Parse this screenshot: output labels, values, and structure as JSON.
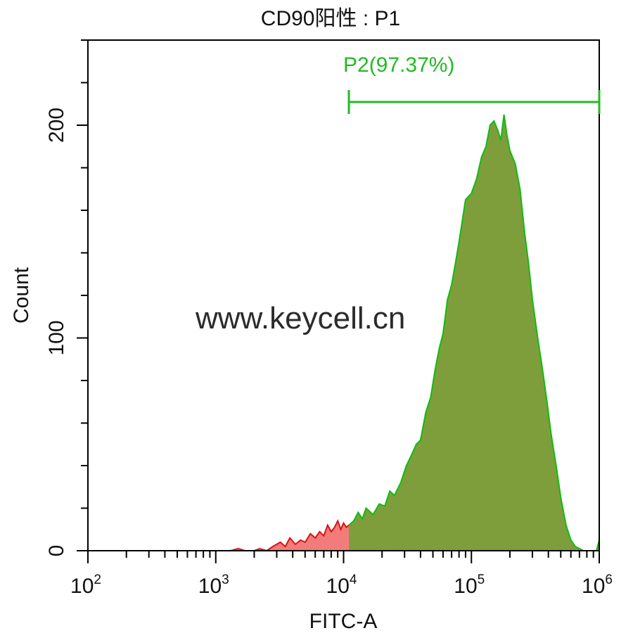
{
  "chart_data": {
    "type": "area",
    "title": "CD90阳性 : P1",
    "xlabel": "FITC-A",
    "ylabel": "Count",
    "x_scale": "log",
    "xlim": [
      100,
      1000000
    ],
    "ylim": [
      0,
      240
    ],
    "x_ticks": [
      {
        "base": "10",
        "exp": "2",
        "value": 100
      },
      {
        "base": "10",
        "exp": "3",
        "value": 1000
      },
      {
        "base": "10",
        "exp": "4",
        "value": 10000
      },
      {
        "base": "10",
        "exp": "5",
        "value": 100000
      },
      {
        "base": "10",
        "exp": "6",
        "value": 1000000
      }
    ],
    "y_ticks": [
      {
        "label": "0",
        "value": 0
      },
      {
        "label": "100",
        "value": 100
      },
      {
        "label": "200",
        "value": 200
      }
    ],
    "gate": {
      "name": "P2",
      "label": "P2(97.37%)",
      "percent": 97.37,
      "x_start": 11000,
      "x_end": 1000000,
      "color": "#22bb22"
    },
    "annotation": "www.keycell.cn",
    "series": [
      {
        "color_fill": "#f27c7c",
        "color_line": "#e01010",
        "x": [
          1300,
          1500,
          1700,
          2000,
          2200,
          2500,
          2800,
          3200,
          3500,
          3800,
          4200,
          4600,
          5000,
          5500,
          6000,
          6500,
          7000,
          7500,
          8000,
          8500,
          9000,
          9500,
          10000,
          10500,
          11000
        ],
        "y": [
          0,
          1,
          0,
          0,
          1,
          0,
          2,
          4,
          2,
          6,
          3,
          5,
          4,
          8,
          6,
          9,
          7,
          12,
          9,
          11,
          14,
          10,
          13,
          11,
          12
        ]
      },
      {
        "color_fill": "#7e9e3c",
        "color_line": "#11bb11",
        "x": [
          11000,
          12000,
          13000,
          14000,
          15000,
          17000,
          19000,
          21000,
          23000,
          25000,
          28000,
          31000,
          34000,
          37000,
          40000,
          44000,
          48000,
          52000,
          56000,
          60000,
          65000,
          70000,
          75000,
          80000,
          90000,
          100000,
          110000,
          120000,
          130000,
          140000,
          150000,
          160000,
          170000,
          180000,
          190000,
          200000,
          220000,
          240000,
          260000,
          280000,
          300000,
          330000,
          360000,
          390000,
          420000,
          460000,
          500000,
          550000,
          600000,
          650000,
          700000,
          750000,
          800000,
          850000,
          900000,
          950000,
          1000000
        ],
        "y": [
          12,
          14,
          18,
          15,
          20,
          17,
          22,
          21,
          28,
          26,
          32,
          40,
          45,
          50,
          52,
          65,
          72,
          85,
          95,
          102,
          118,
          125,
          135,
          145,
          165,
          168,
          175,
          185,
          190,
          200,
          202,
          198,
          193,
          205,
          195,
          188,
          182,
          170,
          150,
          135,
          118,
          100,
          85,
          70,
          55,
          40,
          25,
          12,
          5,
          2,
          1,
          0,
          0,
          0,
          0,
          0,
          5
        ]
      }
    ]
  }
}
